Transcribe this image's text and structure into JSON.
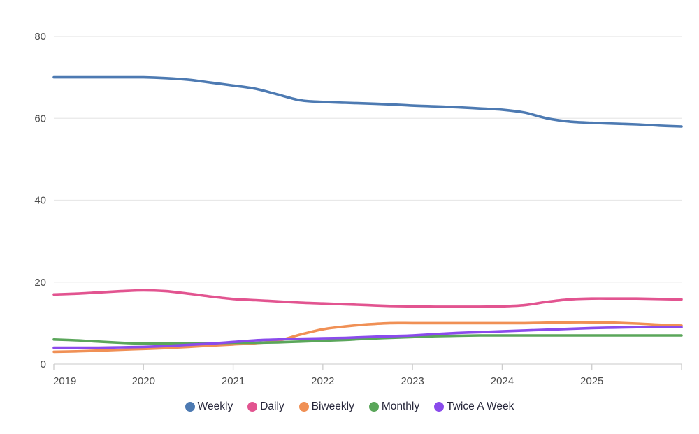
{
  "chart_data": {
    "type": "line",
    "title": "",
    "xlabel": "",
    "ylabel": "",
    "xlim": [
      2019,
      2026
    ],
    "ylim": [
      0,
      80
    ],
    "grid": "horizontal",
    "legend_position": "bottom",
    "y_ticks": [
      0,
      20,
      40,
      60,
      80
    ],
    "x_ticks": [
      2019,
      2020,
      2021,
      2022,
      2023,
      2024,
      2025
    ],
    "x_tick_labels": [
      "2019",
      "2020",
      "2021",
      "2022",
      "2023",
      "2024",
      "2025"
    ],
    "x": [
      2019,
      2019.25,
      2019.5,
      2019.75,
      2020,
      2020.25,
      2020.5,
      2020.75,
      2021,
      2021.25,
      2021.5,
      2021.75,
      2022,
      2022.25,
      2022.5,
      2022.75,
      2023,
      2023.25,
      2023.5,
      2023.75,
      2024,
      2024.25,
      2024.5,
      2024.75,
      2025,
      2025.25,
      2025.5,
      2025.75,
      2026
    ],
    "series": [
      {
        "name": "Weekly",
        "color": "#4d7ab2",
        "values": [
          70,
          70,
          70,
          70,
          70,
          69.8,
          69.4,
          68.7,
          68,
          67.2,
          65.8,
          64.4,
          64,
          63.8,
          63.6,
          63.4,
          63.1,
          62.9,
          62.7,
          62.4,
          62.1,
          61.4,
          60,
          59.2,
          58.9,
          58.7,
          58.5,
          58.2,
          58
        ]
      },
      {
        "name": "Daily",
        "color": "#e25490",
        "values": [
          17,
          17.2,
          17.5,
          17.8,
          18,
          17.8,
          17.2,
          16.5,
          15.9,
          15.6,
          15.3,
          15,
          14.8,
          14.6,
          14.4,
          14.2,
          14.1,
          14,
          14,
          14,
          14.1,
          14.4,
          15.2,
          15.8,
          16,
          16,
          16,
          15.9,
          15.8
        ]
      },
      {
        "name": "Biweekly",
        "color": "#f09055",
        "values": [
          3,
          3.1,
          3.3,
          3.5,
          3.7,
          3.9,
          4.2,
          4.5,
          4.8,
          5.1,
          5.7,
          7.2,
          8.5,
          9.2,
          9.7,
          10,
          10,
          10,
          10,
          10,
          10,
          10,
          10.1,
          10.2,
          10.2,
          10.1,
          9.9,
          9.6,
          9.4
        ]
      },
      {
        "name": "Monthly",
        "color": "#5aa65a",
        "values": [
          6,
          5.8,
          5.5,
          5.2,
          5,
          5,
          5,
          5.1,
          5.2,
          5.2,
          5.3,
          5.5,
          5.7,
          5.9,
          6.2,
          6.4,
          6.6,
          6.8,
          6.9,
          7,
          7,
          7,
          7,
          7,
          7,
          7,
          7,
          7,
          7
        ]
      },
      {
        "name": "Twice A Week",
        "color": "#8a4bec",
        "values": [
          4,
          4,
          4,
          4.1,
          4.2,
          4.4,
          4.7,
          5,
          5.4,
          5.8,
          6,
          6.2,
          6.3,
          6.4,
          6.6,
          6.8,
          7,
          7.3,
          7.6,
          7.8,
          8,
          8.2,
          8.4,
          8.6,
          8.8,
          8.9,
          9,
          9,
          9
        ]
      }
    ],
    "colors": {
      "gridline": "#e8e8e8",
      "axis_line": "#d4d4d4",
      "tick_mark": "#cccccc",
      "tick_label": "#4c4c4c",
      "legend_text": "#26263a",
      "background": "#ffffff"
    }
  }
}
